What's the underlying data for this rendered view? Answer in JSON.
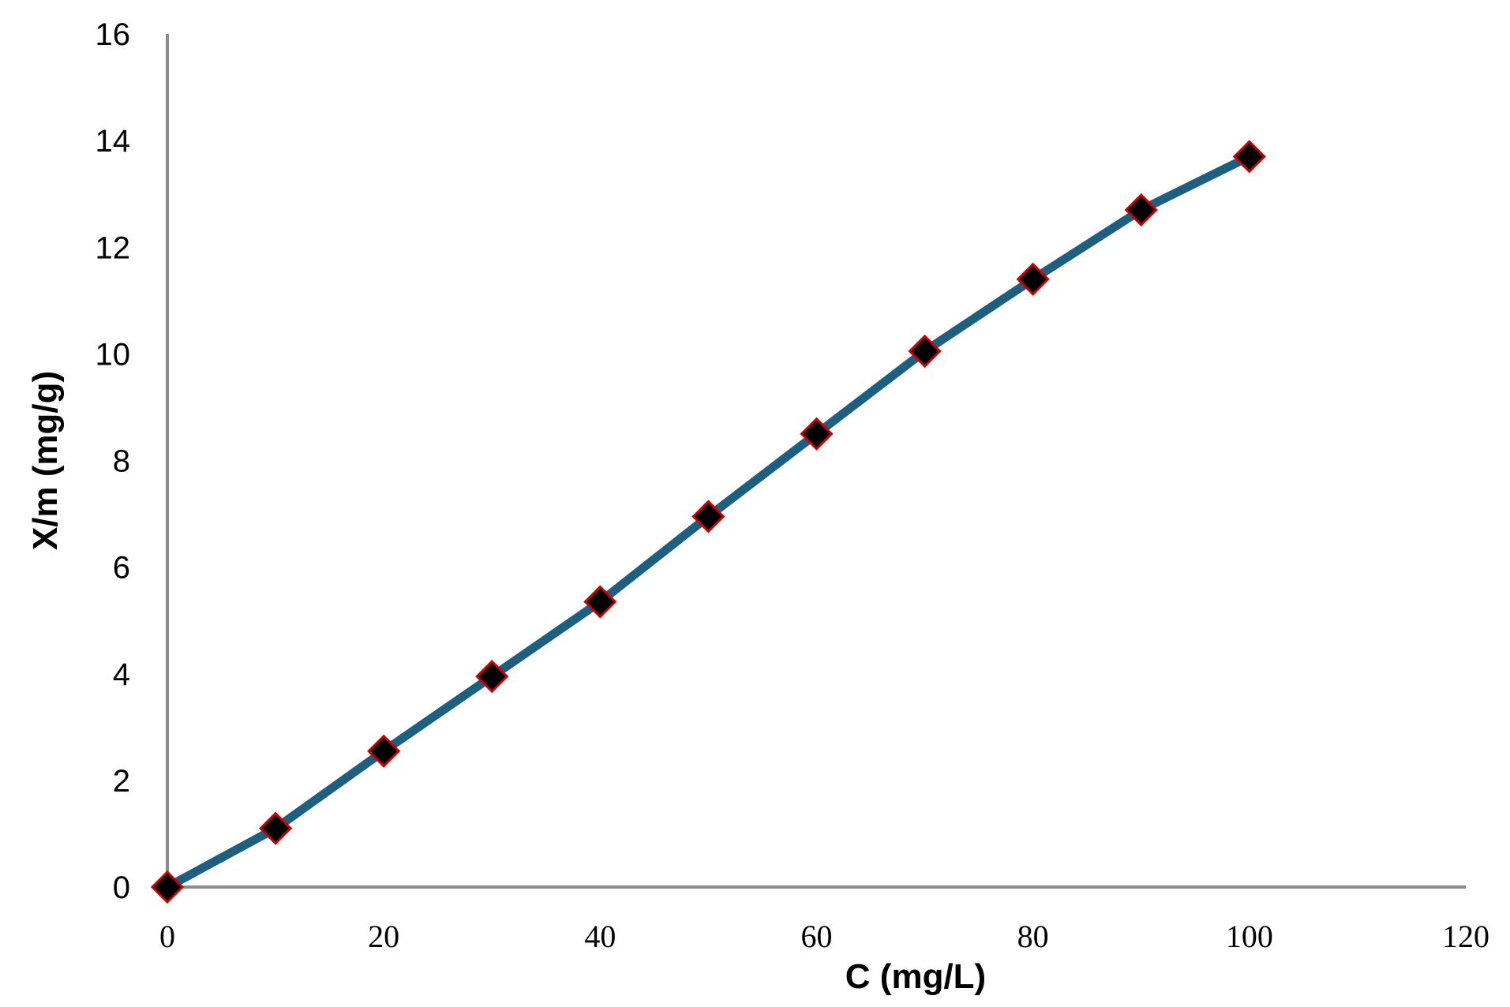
{
  "chart_data": {
    "type": "line",
    "xlabel": "C (mg/L)",
    "ylabel": "X/m (mg/g)",
    "xlim": [
      0,
      120
    ],
    "ylim": [
      0,
      16
    ],
    "xticks": [
      0,
      20,
      40,
      60,
      80,
      100,
      120
    ],
    "yticks": [
      0,
      2,
      4,
      6,
      8,
      10,
      12,
      14,
      16
    ],
    "grid": false,
    "series": [
      {
        "x": [
          0,
          10,
          20,
          30,
          40,
          50,
          60,
          70,
          80,
          90,
          100
        ],
        "y": [
          0,
          1.1,
          2.55,
          3.95,
          5.35,
          6.95,
          8.5,
          10.05,
          11.4,
          12.7,
          13.7
        ],
        "line_color": "#1d5f80",
        "marker_color": "#000000",
        "marker_edge": "#cc0000"
      }
    ]
  }
}
